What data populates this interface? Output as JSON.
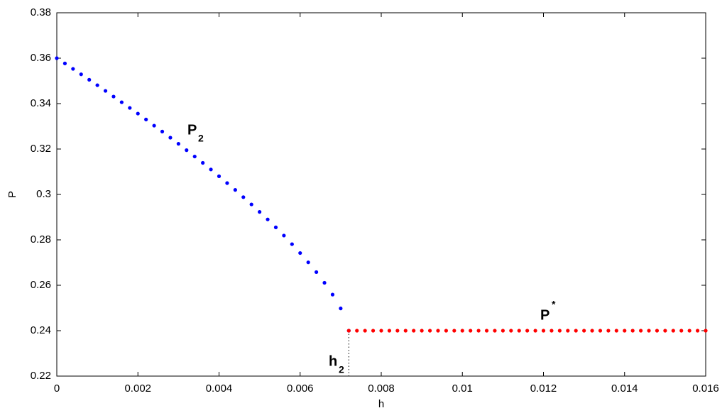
{
  "chart_data": {
    "type": "scatter",
    "x_label": "h",
    "y_label": "P",
    "xlim": [
      0,
      0.016
    ],
    "ylim": [
      0.22,
      0.38
    ],
    "xticks": [
      0,
      0.002,
      0.004,
      0.006,
      0.008,
      0.01,
      0.012,
      0.014,
      0.016
    ],
    "yticks": [
      0.22,
      0.24,
      0.26,
      0.28,
      0.3,
      0.32,
      0.34,
      0.36,
      0.38
    ],
    "grid": false,
    "series": [
      {
        "color": "#0000ff",
        "x": [
          0,
          0.0002,
          0.0004,
          0.0006,
          0.0008,
          0.001,
          0.0012,
          0.0014,
          0.0016,
          0.0018,
          0.002,
          0.0022,
          0.0024,
          0.0026,
          0.0028,
          0.003,
          0.0032,
          0.0034,
          0.0036,
          0.0038,
          0.004,
          0.0042,
          0.0044,
          0.0046,
          0.0048,
          0.005,
          0.0052,
          0.0054,
          0.0056,
          0.0058,
          0.006,
          0.0062,
          0.0064,
          0.0066,
          0.0068,
          0.007,
          0.0072
        ],
        "values": [
          0.36,
          0.3577,
          0.3553,
          0.3529,
          0.3505,
          0.3481,
          0.3456,
          0.3431,
          0.3406,
          0.3381,
          0.3356,
          0.333,
          0.3303,
          0.3277,
          0.325,
          0.3223,
          0.3195,
          0.3167,
          0.3139,
          0.311,
          0.308,
          0.305,
          0.302,
          0.2988,
          0.2956,
          0.2923,
          0.289,
          0.2855,
          0.2819,
          0.2781,
          0.2742,
          0.2701,
          0.2658,
          0.2611,
          0.2559,
          0.2498,
          0.24
        ]
      },
      {
        "color": "#ff0000",
        "x": [
          0.0072,
          0.0074,
          0.0076,
          0.0078,
          0.008,
          0.0082,
          0.0084,
          0.0086,
          0.0088,
          0.009,
          0.0092,
          0.0094,
          0.0096,
          0.0098,
          0.01,
          0.0102,
          0.0104,
          0.0106,
          0.0108,
          0.011,
          0.0112,
          0.0114,
          0.0116,
          0.0118,
          0.012,
          0.0122,
          0.0124,
          0.0126,
          0.0128,
          0.013,
          0.0132,
          0.0134,
          0.0136,
          0.0138,
          0.014,
          0.0142,
          0.0144,
          0.0146,
          0.0148,
          0.015,
          0.0152,
          0.0154,
          0.0156,
          0.0158,
          0.016
        ],
        "values": [
          0.24,
          0.24,
          0.24,
          0.24,
          0.24,
          0.24,
          0.24,
          0.24,
          0.24,
          0.24,
          0.24,
          0.24,
          0.24,
          0.24,
          0.24,
          0.24,
          0.24,
          0.24,
          0.24,
          0.24,
          0.24,
          0.24,
          0.24,
          0.24,
          0.24,
          0.24,
          0.24,
          0.24,
          0.24,
          0.24,
          0.24,
          0.24,
          0.24,
          0.24,
          0.24,
          0.24,
          0.24,
          0.24,
          0.24,
          0.24,
          0.24,
          0.24,
          0.24,
          0.24,
          0.24
        ]
      }
    ],
    "annotations": [
      {
        "text": "P",
        "sub": "2"
      },
      {
        "text": "P",
        "sup": "*"
      },
      {
        "text": "h",
        "sub": "2",
        "color": "#ff0000"
      }
    ]
  }
}
